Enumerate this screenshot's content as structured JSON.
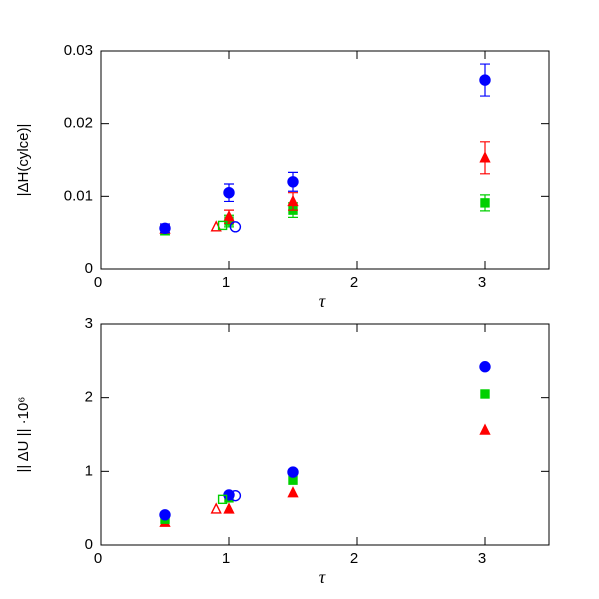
{
  "chart_data": [
    {
      "type": "scatter",
      "xlabel": "τ",
      "ylabel": "|ΔH(cylce)|",
      "xlim": [
        0,
        3.5
      ],
      "xticks": [
        0,
        1,
        2,
        3
      ],
      "ylim": [
        0,
        0.03
      ],
      "yticks": [
        0,
        0.01,
        0.02,
        0.03
      ],
      "series": [
        {
          "color": "#00d000",
          "marker": "square",
          "filled": true,
          "x": [
            0.5,
            1,
            1.5,
            3
          ],
          "values": [
            0.0053,
            0.0066,
            0.0081,
            0.0091
          ],
          "errors": [
            0.0006,
            0.0008,
            0.001,
            0.0011
          ]
        },
        {
          "color": "#ff0000",
          "marker": "triangle",
          "filled": true,
          "x": [
            0.5,
            1,
            1.5,
            3
          ],
          "values": [
            0.0055,
            0.0072,
            0.0093,
            0.0153
          ],
          "errors": [
            0.0005,
            0.0009,
            0.0012,
            0.0022
          ]
        },
        {
          "color": "#0000ff",
          "marker": "circle",
          "filled": true,
          "x": [
            0.5,
            1,
            1.5,
            3
          ],
          "values": [
            0.0056,
            0.0105,
            0.012,
            0.026
          ],
          "errors": [
            0.0006,
            0.0012,
            0.0013,
            0.0022
          ]
        },
        {
          "color": "#ff0000",
          "marker": "triangle",
          "filled": false,
          "x": [
            0.9
          ],
          "values": [
            0.0058
          ]
        },
        {
          "color": "#00d000",
          "marker": "square",
          "filled": false,
          "x": [
            0.95
          ],
          "values": [
            0.006
          ]
        },
        {
          "color": "#0000ff",
          "marker": "circle",
          "filled": false,
          "x": [
            1.05
          ],
          "values": [
            0.0058
          ]
        }
      ]
    },
    {
      "type": "scatter",
      "xlabel": "τ",
      "ylabel": "|| ΔU || ·10⁶",
      "xlim": [
        0,
        3.5
      ],
      "xticks": [
        0,
        1,
        2,
        3
      ],
      "ylim": [
        0,
        3
      ],
      "yticks": [
        0,
        1,
        2,
        3
      ],
      "series": [
        {
          "color": "#ff0000",
          "marker": "triangle",
          "filled": true,
          "x": [
            0.5,
            1,
            1.5,
            3
          ],
          "values": [
            0.31,
            0.49,
            0.71,
            1.56
          ]
        },
        {
          "color": "#00d000",
          "marker": "square",
          "filled": true,
          "x": [
            0.5,
            1,
            1.5,
            3
          ],
          "values": [
            0.35,
            0.64,
            0.88,
            2.05
          ]
        },
        {
          "color": "#0000ff",
          "marker": "circle",
          "filled": true,
          "x": [
            0.5,
            1,
            1.5,
            3
          ],
          "values": [
            0.41,
            0.68,
            0.99,
            2.42
          ]
        },
        {
          "color": "#ff0000",
          "marker": "triangle",
          "filled": false,
          "x": [
            0.9
          ],
          "values": [
            0.49
          ]
        },
        {
          "color": "#00d000",
          "marker": "square",
          "filled": false,
          "x": [
            0.95
          ],
          "values": [
            0.62
          ]
        },
        {
          "color": "#0000ff",
          "marker": "circle",
          "filled": false,
          "x": [
            1.05
          ],
          "values": [
            0.67
          ]
        }
      ]
    }
  ]
}
